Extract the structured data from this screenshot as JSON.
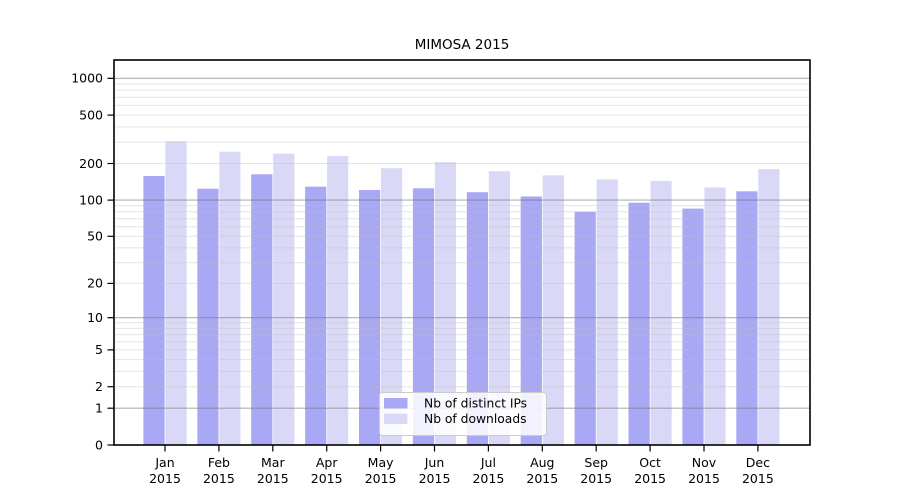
{
  "chart_data": {
    "type": "bar",
    "title": "MIMOSA 2015",
    "categories": [
      "Jan 2015",
      "Feb 2015",
      "Mar 2015",
      "Apr 2015",
      "May 2015",
      "Jun 2015",
      "Jul 2015",
      "Aug 2015",
      "Sep 2015",
      "Oct 2015",
      "Nov 2015",
      "Dec 2015"
    ],
    "series": [
      {
        "name": "Nb of distinct IPs",
        "color": "#a8a8f4",
        "values": [
          158,
          124,
          163,
          129,
          121,
          125,
          116,
          107,
          80,
          95,
          85,
          118
        ]
      },
      {
        "name": "Nb of downloads",
        "color": "#d9d9f7",
        "values": [
          305,
          250,
          241,
          230,
          183,
          205,
          173,
          160,
          148,
          144,
          127,
          180
        ]
      }
    ],
    "xlabel": "",
    "ylabel": "",
    "y_axis": {
      "scale": "log(value+1)",
      "tick_labels": [
        "1000",
        "500",
        "200",
        "100",
        "50",
        "20",
        "10",
        "5",
        "2",
        "1",
        "0"
      ],
      "tick_values": [
        1000,
        500,
        200,
        100,
        50,
        20,
        10,
        5,
        2,
        1,
        0
      ],
      "major_gridline_values": [
        1,
        10,
        100,
        1000
      ],
      "minor_gridline_values": [
        2,
        3,
        4,
        5,
        6,
        7,
        8,
        9,
        20,
        30,
        40,
        50,
        60,
        70,
        80,
        90,
        200,
        300,
        400,
        500,
        600,
        700,
        800,
        900
      ],
      "ylim": [
        0,
        1413
      ],
      "grid": "on"
    },
    "legend": {
      "position": "inside-bottom-center",
      "entries": [
        "Nb of distinct IPs",
        "Nb of downloads"
      ]
    },
    "colors": {
      "background": "#ffffff",
      "axis_frame": "#000000",
      "grid_major": "#b5b5b5",
      "grid_minor": "#e9e9e9",
      "legend_border": "#cccccc",
      "legend_background": "rgba(255,255,255,0.85)",
      "text": "#000000"
    }
  }
}
